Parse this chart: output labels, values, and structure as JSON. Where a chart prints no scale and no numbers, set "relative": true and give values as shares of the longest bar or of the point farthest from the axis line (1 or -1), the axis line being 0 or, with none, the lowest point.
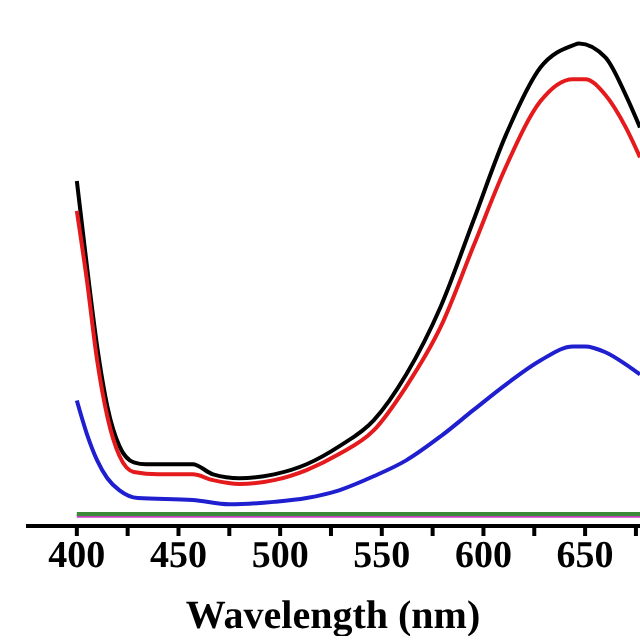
{
  "chart_data": {
    "type": "line",
    "relative": true,
    "xlabel": "Wavelength (nm)",
    "xlim": [
      375,
      677
    ],
    "xticks": [
      400,
      {
        "value": 425,
        "label": null
      },
      450,
      {
        "value": 475,
        "label": null
      },
      500,
      {
        "value": 525,
        "label": null
      },
      550,
      {
        "value": 575,
        "label": null
      },
      600,
      {
        "value": 625,
        "label": null
      },
      650,
      {
        "value": 675,
        "label": null
      }
    ],
    "grid": false,
    "legend": false,
    "marker": "none",
    "line_style": "solid",
    "series": [
      {
        "color": "#000000",
        "x": [
          400,
          405,
          410,
          415,
          421,
          428,
          434,
          448,
          457,
          467,
          480,
          497,
          513,
          529,
          546,
          562,
          579,
          595,
          611,
          628,
          644,
          647,
          660,
          670,
          677
        ],
        "values": [
          0.715,
          0.537,
          0.372,
          0.248,
          0.165,
          0.132,
          0.128,
          0.128,
          0.128,
          0.107,
          0.099,
          0.107,
          0.128,
          0.165,
          0.219,
          0.314,
          0.455,
          0.632,
          0.81,
          0.95,
          0.996,
          1,
          0.971,
          0.893,
          0.826
        ]
      },
      {
        "color": "#e41a1c",
        "x": [
          400,
          405,
          410,
          415,
          421,
          428,
          440,
          457,
          467,
          480,
          497,
          513,
          529,
          546,
          562,
          579,
          595,
          611,
          628,
          644,
          650,
          660,
          670,
          677
        ],
        "values": [
          0.653,
          0.508,
          0.343,
          0.227,
          0.145,
          0.112,
          0.107,
          0.107,
          0.095,
          0.087,
          0.095,
          0.116,
          0.149,
          0.198,
          0.289,
          0.413,
          0.579,
          0.744,
          0.88,
          0.926,
          0.926,
          0.893,
          0.826,
          0.764
        ]
      },
      {
        "color": "#1f1fd0",
        "x": [
          400,
          405,
          410,
          415,
          421,
          430,
          457,
          475,
          497,
          513,
          529,
          546,
          562,
          579,
          595,
          611,
          628,
          644,
          650,
          660,
          670,
          677
        ],
        "values": [
          0.26,
          0.19,
          0.136,
          0.099,
          0.074,
          0.058,
          0.054,
          0.045,
          0.05,
          0.058,
          0.074,
          0.103,
          0.136,
          0.186,
          0.24,
          0.293,
          0.343,
          0.372,
          0.372,
          0.36,
          0.335,
          0.314
        ]
      },
      {
        "color": "#c040c0",
        "x": [
          400,
          677
        ],
        "values": [
          0.021,
          0.021
        ]
      },
      {
        "color": "#3a8a3a",
        "x": [
          400,
          677
        ],
        "values": [
          0.025,
          0.025
        ]
      }
    ]
  }
}
